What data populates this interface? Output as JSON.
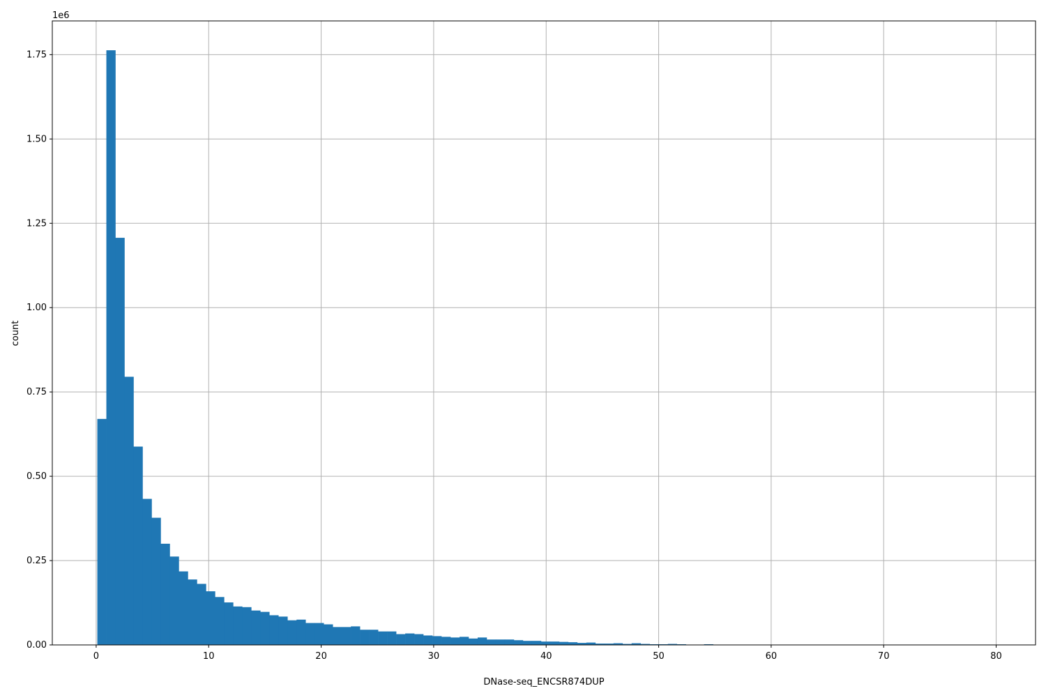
{
  "chart_data": {
    "type": "bar",
    "title": "",
    "xlabel": "DNase-seq_ENCSR874DUP",
    "ylabel": "count",
    "y_multiplier_label": "1e6",
    "xlim": [
      -3.9,
      83.5
    ],
    "ylim": [
      0,
      1.85
    ],
    "grid": true,
    "color": "#1f77b4",
    "bin_start": 0.1,
    "bin_width": 0.805,
    "x_ticks": [
      0,
      10,
      20,
      30,
      40,
      50,
      60,
      70,
      80
    ],
    "x_tick_labels": [
      "0",
      "10",
      "20",
      "30",
      "40",
      "50",
      "60",
      "70",
      "80"
    ],
    "y_ticks": [
      0,
      0.25,
      0.5,
      0.75,
      1.0,
      1.25,
      1.5,
      1.75
    ],
    "y_tick_labels": [
      "0.00",
      "0.25",
      "0.50",
      "0.75",
      "1.00",
      "1.25",
      "1.50",
      "1.75"
    ],
    "values_1e6": [
      0.67,
      1.763,
      1.207,
      0.795,
      0.588,
      0.433,
      0.377,
      0.3,
      0.262,
      0.218,
      0.194,
      0.181,
      0.159,
      0.142,
      0.126,
      0.114,
      0.112,
      0.102,
      0.098,
      0.088,
      0.084,
      0.073,
      0.075,
      0.065,
      0.065,
      0.061,
      0.053,
      0.053,
      0.055,
      0.045,
      0.045,
      0.04,
      0.04,
      0.032,
      0.034,
      0.032,
      0.028,
      0.026,
      0.024,
      0.022,
      0.024,
      0.019,
      0.022,
      0.016,
      0.016,
      0.016,
      0.014,
      0.012,
      0.012,
      0.01,
      0.01,
      0.009,
      0.008,
      0.006,
      0.007,
      0.004,
      0.004,
      0.005,
      0.003,
      0.005,
      0.003,
      0.002,
      0.002,
      0.003,
      0.002,
      0.001,
      0.001,
      0.002,
      0.0005,
      0.001,
      0.0005,
      0.0005,
      0,
      0.0005,
      0,
      0,
      0,
      0,
      0,
      0,
      0,
      0,
      0,
      0,
      0,
      0,
      0,
      0,
      0,
      0,
      0,
      0,
      0,
      0,
      0,
      0,
      0,
      0,
      0,
      0.0002
    ]
  }
}
